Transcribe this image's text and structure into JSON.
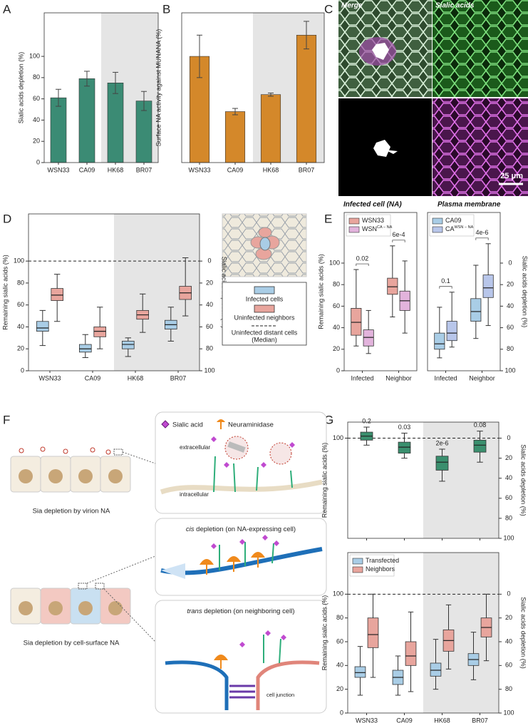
{
  "panel_labels": [
    "A",
    "B",
    "C",
    "D",
    "E",
    "F",
    "G"
  ],
  "micrographs": {
    "merge": "Merge",
    "sialic_acids": "Sialic acids",
    "infected_cell": "Infected cell (NA)",
    "plasma_membrane": "Plasma membrane",
    "scale_bar": "25 μm"
  },
  "diagram": {
    "legend_sialic": "Sialic acid",
    "legend_na": "Neuraminidase",
    "extracellular": "extracellular",
    "intracellular": "intracellular",
    "virion_caption": "Sia depletion by virion NA",
    "surface_caption": "Sia depletion by cell-surface NA",
    "cis_term": "cis",
    "cis_rest": " depletion (on NA-expressing cell)",
    "trans_term": "trans",
    "trans_rest": " depletion (on neighboring cell)",
    "cell_junction": "cell junction"
  },
  "chart_data": [
    {
      "type": "bar",
      "ylabel": "Sialic acids depletion (%)",
      "categories": [
        "WSN33",
        "CA09",
        "HK68",
        "BR07"
      ],
      "values": [
        61,
        79,
        75,
        58
      ],
      "errors": [
        8,
        7,
        10,
        9
      ],
      "color": "#3b8b74",
      "shaded": [
        false,
        false,
        true,
        true
      ],
      "ylim": [
        0,
        141
      ],
      "yticks": [
        0,
        20,
        40,
        60,
        80,
        100
      ]
    },
    {
      "type": "bar",
      "ylabel": "Surface NA activity against MUNANA (%)",
      "categories": [
        "WSN33",
        "CA09",
        "HK68",
        "BR07"
      ],
      "values": [
        100,
        48,
        64,
        120
      ],
      "errors": [
        20,
        3,
        1.5,
        13
      ],
      "color": "#d4882a",
      "shaded": [
        false,
        false,
        true,
        true
      ],
      "ylim": [
        0,
        141
      ]
    },
    {
      "type": "box",
      "ylabel": "Remaining sialic acids (%)",
      "y2label": "Sialic acids depletion (%)",
      "categories": [
        "WSN33",
        "CA09",
        "HK68",
        "BR07"
      ],
      "shaded": [
        false,
        false,
        true,
        true
      ],
      "ylim": [
        0,
        143
      ],
      "yticks": [
        0,
        20,
        40,
        60,
        80,
        100
      ],
      "y2lim": [
        100,
        -43
      ],
      "y2ticks": [
        0,
        20,
        40,
        60,
        80,
        100
      ],
      "reference_line": 100,
      "reference_label": [
        "Uninfected distant cells",
        "(Median)"
      ],
      "legend": "outside",
      "series": [
        {
          "name": "Infected cells",
          "color": "#a9cde6",
          "values": [
            {
              "min": 23,
              "q1": 36,
              "median": 39,
              "q3": 45,
              "max": 55
            },
            {
              "min": 12,
              "q1": 17,
              "median": 20,
              "q3": 24,
              "max": 33
            },
            {
              "min": 13,
              "q1": 20,
              "median": 24,
              "q3": 27,
              "max": 30
            },
            {
              "min": 27,
              "q1": 38,
              "median": 42,
              "q3": 46,
              "max": 58
            }
          ]
        },
        {
          "name": "Uninfected neighbors",
          "color": "#e8a59d",
          "values": [
            {
              "min": 45,
              "q1": 64,
              "median": 69,
              "q3": 75,
              "max": 88
            },
            {
              "min": 20,
              "q1": 31,
              "median": 36,
              "q3": 40,
              "max": 58
            },
            {
              "min": 35,
              "q1": 47,
              "median": 51,
              "q3": 55,
              "max": 70
            },
            {
              "min": 50,
              "q1": 65,
              "median": 71,
              "q3": 77,
              "max": 103
            }
          ]
        }
      ]
    },
    {
      "type": "box",
      "ylabel": "Remaining sialic acids (%)",
      "categories": [
        "Infected",
        "Neighbor"
      ],
      "ylim": [
        0,
        147
      ],
      "yticks": [
        0,
        20,
        40,
        60,
        80,
        100
      ],
      "legend": "upper-left",
      "p_values": [
        "0.02",
        "6e-4"
      ],
      "series": [
        {
          "name": "WSN33",
          "color": "#e8a59d",
          "values": [
            {
              "min": 23,
              "q1": 33,
              "median": 45,
              "q3": 58,
              "max": 94
            },
            {
              "min": 50,
              "q1": 71,
              "median": 78,
              "q3": 86,
              "max": 116
            }
          ]
        },
        {
          "name": "WSN",
          "name_sup": "CA − NA",
          "color": "#e2b3dc",
          "values": [
            {
              "min": 16,
              "q1": 23,
              "median": 31,
              "q3": 38,
              "max": 56
            },
            {
              "min": 35,
              "q1": 56,
              "median": 65,
              "q3": 74,
              "max": 102
            }
          ]
        }
      ]
    },
    {
      "type": "box",
      "y2label": "Sialic acids depletion (%)",
      "categories": [
        "Infected",
        "Neighbor"
      ],
      "ylim": [
        0,
        147
      ],
      "y2lim": [
        100,
        -47
      ],
      "y2ticks": [
        0,
        20,
        40,
        60,
        80,
        100
      ],
      "legend": "upper-left",
      "p_values": [
        "0.1",
        "4e-6"
      ],
      "series": [
        {
          "name": "CA09",
          "color": "#a9cde6",
          "values": [
            {
              "min": 12,
              "q1": 20,
              "median": 25,
              "q3": 35,
              "max": 59
            },
            {
              "min": 30,
              "q1": 46,
              "median": 55,
              "q3": 67,
              "max": 98
            }
          ]
        },
        {
          "name": "CA",
          "name_sup": "WSN − NA",
          "color": "#b8c6ea",
          "values": [
            {
              "min": 22,
              "q1": 28,
              "median": 35,
              "q3": 46,
              "max": 73
            },
            {
              "min": 42,
              "q1": 68,
              "median": 77,
              "q3": 89,
              "max": 118
            }
          ]
        }
      ]
    },
    {
      "type": "box",
      "ylabel": "Remaining sialic acids (%)",
      "y2label": "Sialic acids depletion (%)",
      "categories": [
        null,
        null,
        null,
        null
      ],
      "shaded": [
        false,
        false,
        true,
        true
      ],
      "ylim": [
        0,
        116
      ],
      "yticks": [
        100
      ],
      "y2lim": [
        100,
        -16
      ],
      "y2ticks": [
        0,
        20,
        40,
        60,
        80,
        100
      ],
      "reference_line": 100,
      "p_values": [
        "0.2",
        "0.03",
        "2e-6",
        "0.08"
      ],
      "series": [
        {
          "color": "#3a8f6e",
          "values": [
            {
              "min": 93,
              "q1": 98,
              "median": 102,
              "q3": 106,
              "max": 111
            },
            {
              "min": 80,
              "q1": 85,
              "median": 91,
              "q3": 96,
              "max": 105
            },
            {
              "min": 57,
              "q1": 68,
              "median": 76,
              "q3": 82,
              "max": 89
            },
            {
              "min": 76,
              "q1": 86,
              "median": 93,
              "q3": 98,
              "max": 107
            }
          ]
        }
      ]
    },
    {
      "type": "box",
      "ylabel": "Remaining sialic acids (%)",
      "y2label": "Sialic acids depletion (%)",
      "categories": [
        "WSN33",
        "CA09",
        "HK68",
        "BR07"
      ],
      "shaded": [
        false,
        false,
        true,
        true
      ],
      "ylim": [
        0,
        135
      ],
      "yticks": [
        0,
        20,
        40,
        60,
        80,
        100
      ],
      "y2lim": [
        100,
        -35
      ],
      "y2ticks": [
        0,
        20,
        40,
        60,
        80,
        100
      ],
      "reference_line": 100,
      "legend": "upper-left",
      "series": [
        {
          "name": "Transfected",
          "color": "#a9cde6",
          "values": [
            {
              "min": 15,
              "q1": 30,
              "median": 34,
              "q3": 39,
              "max": 56
            },
            {
              "min": 15,
              "q1": 24,
              "median": 30,
              "q3": 36,
              "max": 48
            },
            {
              "min": 20,
              "q1": 31,
              "median": 36,
              "q3": 42,
              "max": 62
            },
            {
              "min": 28,
              "q1": 40,
              "median": 45,
              "q3": 50,
              "max": 68
            }
          ]
        },
        {
          "name": "Neighbors",
          "color": "#e8a59d",
          "values": [
            {
              "min": 30,
              "q1": 55,
              "median": 66,
              "q3": 80,
              "max": 100
            },
            {
              "min": 18,
              "q1": 40,
              "median": 48,
              "q3": 60,
              "max": 85
            },
            {
              "min": 37,
              "q1": 52,
              "median": 61,
              "q3": 70,
              "max": 91
            },
            {
              "min": 44,
              "q1": 64,
              "median": 72,
              "q3": 80,
              "max": 100
            }
          ]
        }
      ]
    }
  ]
}
